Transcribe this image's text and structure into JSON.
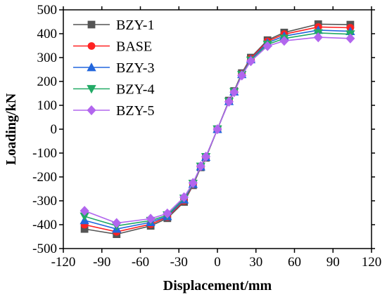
{
  "chart_data": {
    "type": "line",
    "title": "",
    "xlabel": "Displacement/mm",
    "ylabel": "Loading/kN",
    "xlim": [
      -120,
      120
    ],
    "ylim": [
      -500,
      500
    ],
    "xticks": [
      -120,
      -90,
      -60,
      -30,
      0,
      30,
      60,
      90,
      120
    ],
    "yticks": [
      -500,
      -400,
      -300,
      -200,
      -100,
      0,
      100,
      200,
      300,
      400,
      500
    ],
    "grid": false,
    "legend_position": "top-left",
    "series": [
      {
        "name": "BZY-1",
        "color": "#555555",
        "marker": "square",
        "x": [
          -103.5,
          -78.5,
          -52,
          -39,
          -26,
          -19,
          -13,
          -9,
          0,
          9,
          13,
          19,
          26,
          39,
          52,
          78.5,
          103.5
        ],
        "y": [
          -418,
          -440,
          -405,
          -373,
          -305,
          -235,
          -160,
          -120,
          0,
          120,
          160,
          235,
          300,
          373,
          405,
          440,
          438
        ]
      },
      {
        "name": "BASE",
        "color": "#ff2222",
        "marker": "circle",
        "x": [
          -103.5,
          -78.5,
          -52,
          -39,
          -26,
          -19,
          -13,
          -9,
          0,
          9,
          13,
          19,
          26,
          39,
          52,
          78.5,
          103.5
        ],
        "y": [
          -400,
          -430,
          -398,
          -368,
          -300,
          -232,
          -158,
          -118,
          0,
          118,
          158,
          232,
          296,
          368,
          398,
          428,
          425
        ]
      },
      {
        "name": "BZY-3",
        "color": "#2266dd",
        "marker": "triangle-up",
        "x": [
          -103.5,
          -78.5,
          -52,
          -39,
          -26,
          -19,
          -13,
          -9,
          0,
          9,
          13,
          19,
          26,
          39,
          52,
          78.5,
          103.5
        ],
        "y": [
          -382,
          -418,
          -390,
          -365,
          -295,
          -230,
          -157,
          -117,
          0,
          117,
          157,
          230,
          292,
          362,
          390,
          415,
          410
        ]
      },
      {
        "name": "BZY-4",
        "color": "#22aa66",
        "marker": "triangle-down",
        "x": [
          -103.5,
          -78.5,
          -52,
          -39,
          -26,
          -19,
          -13,
          -9,
          0,
          9,
          13,
          19,
          26,
          39,
          52,
          78.5,
          103.5
        ],
        "y": [
          -365,
          -405,
          -383,
          -360,
          -290,
          -228,
          -156,
          -116,
          0,
          116,
          156,
          228,
          288,
          355,
          380,
          403,
          398
        ]
      },
      {
        "name": "BZY-5",
        "color": "#b266ee",
        "marker": "diamond",
        "x": [
          -103.5,
          -78.5,
          -52,
          -39,
          -26,
          -19,
          -13,
          -9,
          0,
          9,
          13,
          19,
          26,
          39,
          52,
          78.5,
          103.5
        ],
        "y": [
          -342,
          -393,
          -375,
          -353,
          -285,
          -225,
          -155,
          -115,
          0,
          115,
          155,
          225,
          285,
          348,
          370,
          385,
          380
        ]
      }
    ]
  }
}
